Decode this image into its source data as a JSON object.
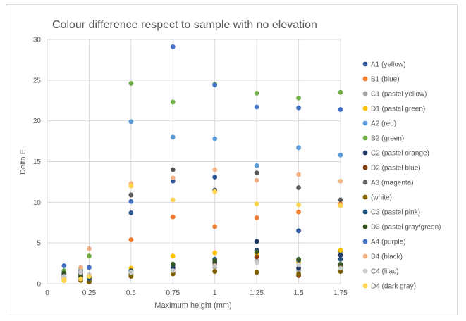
{
  "chart_data": {
    "type": "scatter",
    "title": "Colour difference respect to sample with no elevation",
    "xlabel": "Maximum height (mm)",
    "ylabel": "Delta E",
    "xlim": [
      0,
      1.75
    ],
    "ylim": [
      0,
      30
    ],
    "x_ticks": [
      0,
      0.25,
      0.5,
      0.75,
      1,
      1.25,
      1.5,
      1.75
    ],
    "x_tick_labels": [
      "0",
      "0.25",
      "0.5",
      "0.75",
      "1",
      "1.25",
      "1.5",
      "1.75"
    ],
    "y_ticks": [
      0,
      5,
      10,
      15,
      20,
      25,
      30
    ],
    "y_tick_labels": [
      "0",
      "5",
      "10",
      "15",
      "20",
      "25",
      "30"
    ],
    "grid": "vertical and horizontal",
    "legend_position": "right",
    "series": [
      {
        "name": "A1 (yellow)",
        "color": "#2f5597",
        "x": [
          0.1,
          0.2,
          0.25,
          0.5,
          0.75,
          1,
          1.25,
          1.5,
          1.75
        ],
        "y": [
          0.6,
          0.7,
          0.3,
          8.7,
          12.6,
          13.1,
          5.2,
          6.5,
          4.0
        ]
      },
      {
        "name": "B1 (blue)",
        "color": "#ed7d31",
        "x": [
          0.1,
          0.2,
          0.25,
          0.5,
          0.75,
          1,
          1.25,
          1.5,
          1.75
        ],
        "y": [
          0.5,
          0.9,
          0.4,
          5.4,
          8.2,
          7.0,
          8.1,
          8.8,
          9.8
        ]
      },
      {
        "name": "C1 (pastel yellow)",
        "color": "#a5a5a5",
        "x": [
          0.1,
          0.2,
          0.25,
          0.5,
          0.75,
          1,
          1.25,
          1.5,
          1.75
        ],
        "y": [
          0.8,
          0.6,
          0.5,
          1.2,
          1.8,
          2.0,
          2.8,
          1.6,
          1.7
        ]
      },
      {
        "name": "D1 (pastel green)",
        "color": "#ffc000",
        "x": [
          0.1,
          0.2,
          0.25,
          0.5,
          0.75,
          1,
          1.25,
          1.5,
          1.75
        ],
        "y": [
          0.4,
          0.5,
          0.3,
          1.9,
          3.4,
          3.8,
          3.6,
          2.6,
          4.1
        ]
      },
      {
        "name": "A2 (red)",
        "color": "#5b9bd5",
        "x": [
          0.1,
          0.2,
          0.25,
          0.5,
          0.75,
          1,
          1.25,
          1.5,
          1.75
        ],
        "y": [
          1.4,
          1.2,
          1.0,
          19.9,
          18.0,
          17.8,
          14.5,
          16.7,
          15.8
        ]
      },
      {
        "name": "B2 (green)",
        "color": "#70ad47",
        "x": [
          0.1,
          0.2,
          0.25,
          0.5,
          0.75,
          1,
          1.25,
          1.5,
          1.75
        ],
        "y": [
          1.6,
          1.9,
          3.4,
          24.6,
          22.3,
          24.5,
          23.4,
          22.8,
          23.5
        ]
      },
      {
        "name": "C2 (pastel orange)",
        "color": "#1f3864",
        "x": [
          0.1,
          0.2,
          0.25,
          0.5,
          0.75,
          1,
          1.25,
          1.5,
          1.75
        ],
        "y": [
          0.9,
          1.1,
          0.6,
          1.5,
          2.0,
          2.6,
          5.2,
          1.9,
          3.5
        ]
      },
      {
        "name": "D2 (pastel blue)",
        "color": "#843c0c",
        "x": [
          0.1,
          0.2,
          0.25,
          0.5,
          0.75,
          1,
          1.25,
          1.5,
          1.75
        ],
        "y": [
          1.0,
          0.8,
          0.7,
          1.1,
          1.4,
          2.3,
          3.3,
          1.0,
          2.2
        ]
      },
      {
        "name": "A3 (magenta)",
        "color": "#595959",
        "x": [
          0.1,
          0.2,
          0.25,
          0.5,
          0.75,
          1,
          1.25,
          1.5,
          1.75
        ],
        "y": [
          1.2,
          1.3,
          0.9,
          10.9,
          14.0,
          11.5,
          13.6,
          11.8,
          10.3
        ]
      },
      {
        "name": "(white)",
        "color": "#7f6000",
        "x": [
          0.1,
          0.2,
          0.25,
          0.5,
          0.75,
          1,
          1.25,
          1.5,
          1.75
        ],
        "y": [
          0.7,
          0.4,
          0.2,
          0.9,
          1.2,
          1.5,
          1.4,
          1.2,
          1.5
        ]
      },
      {
        "name": "C3 (pastel pink)",
        "color": "#1f4e79",
        "x": [
          0.1,
          0.2,
          0.25,
          0.5,
          0.75,
          1,
          1.25,
          1.5,
          1.75
        ],
        "y": [
          1.1,
          0.9,
          0.6,
          1.6,
          2.3,
          3.0,
          4.1,
          2.9,
          3.0
        ]
      },
      {
        "name": "D3 (pastel gray/green)",
        "color": "#375623",
        "x": [
          0.1,
          0.2,
          0.25,
          0.5,
          0.75,
          1,
          1.25,
          1.5,
          1.75
        ],
        "y": [
          1.3,
          1.0,
          0.8,
          1.3,
          2.4,
          2.8,
          3.9,
          3.0,
          2.4
        ]
      },
      {
        "name": "A4 (purple)",
        "color": "#4472c4",
        "x": [
          0.1,
          0.2,
          0.25,
          0.5,
          0.75,
          1,
          1.25,
          1.5,
          1.75
        ],
        "y": [
          2.2,
          1.6,
          2.0,
          10.1,
          29.1,
          24.4,
          21.7,
          21.6,
          21.4
        ]
      },
      {
        "name": "B4 (black)",
        "color": "#f4b183",
        "x": [
          0.1,
          0.2,
          0.25,
          0.5,
          0.75,
          1,
          1.25,
          1.5,
          1.75
        ],
        "y": [
          0.6,
          2.0,
          4.3,
          12.3,
          13.0,
          14.0,
          12.7,
          13.4,
          12.6
        ]
      },
      {
        "name": "C4 (lilac)",
        "color": "#c9c9c9",
        "x": [
          0.1,
          0.2,
          0.25,
          0.5,
          0.75,
          1,
          1.25,
          1.5,
          1.75
        ],
        "y": [
          0.9,
          1.4,
          1.1,
          1.4,
          1.6,
          2.2,
          2.6,
          2.3,
          1.9
        ]
      },
      {
        "name": "D4 (dark gray)",
        "color": "#ffd54f",
        "x": [
          0.1,
          0.2,
          0.25,
          0.5,
          0.75,
          1,
          1.25,
          1.5,
          1.75
        ],
        "y": [
          0.5,
          0.6,
          0.9,
          12.0,
          10.3,
          11.3,
          9.8,
          9.7,
          9.6
        ]
      }
    ]
  }
}
